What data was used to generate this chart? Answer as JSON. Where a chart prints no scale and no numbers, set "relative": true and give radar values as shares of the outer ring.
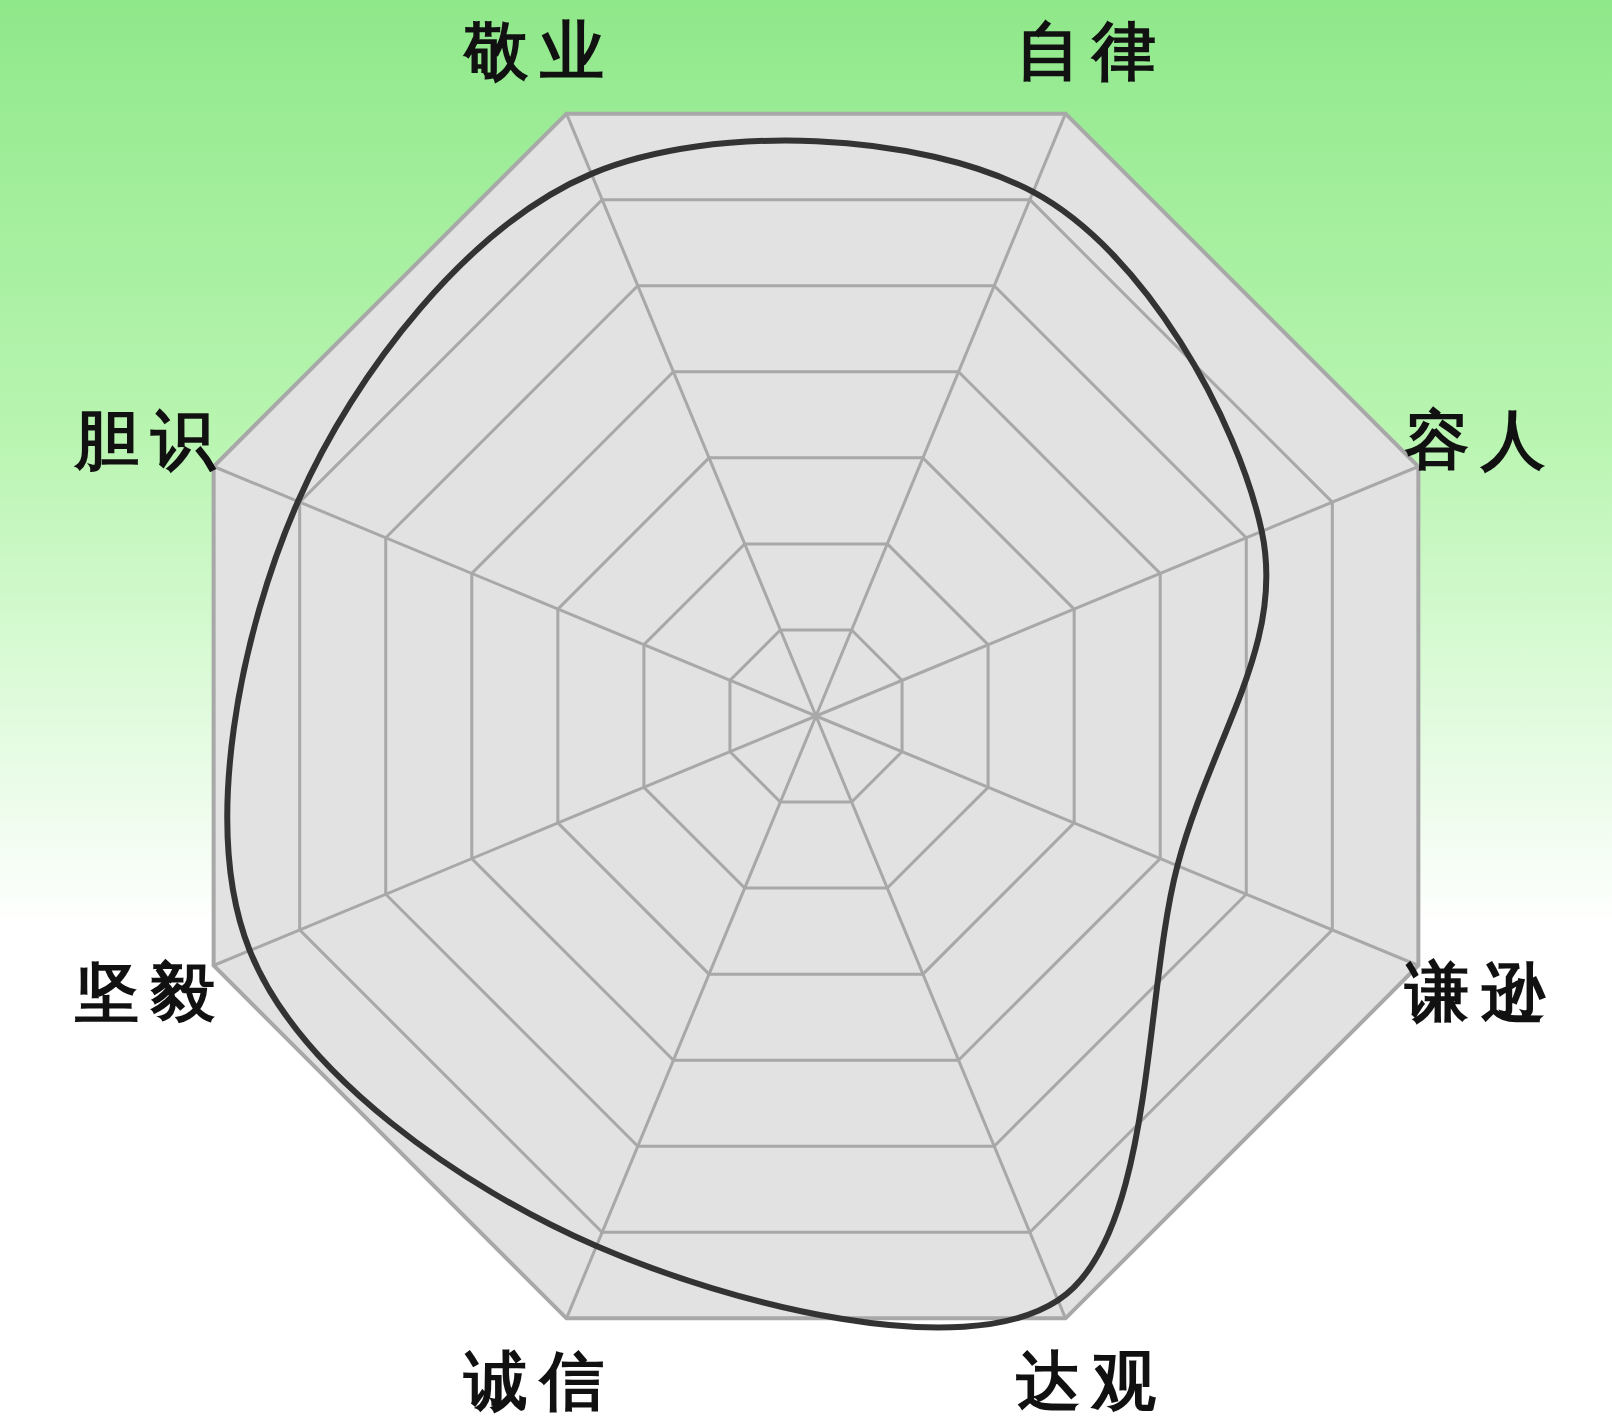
{
  "chart_data": {
    "type": "radar",
    "relative": true,
    "grid": true,
    "categories": [
      "自律",
      "容人",
      "谦逊",
      "达观",
      "诚信",
      "坚毅",
      "胆识",
      "敬业"
    ],
    "series": [
      {
        "color": "#333333",
        "values": [
          0.87,
          0.74,
          0.6,
          0.97,
          0.88,
          0.94,
          0.86,
          0.9
        ]
      }
    ]
  }
}
